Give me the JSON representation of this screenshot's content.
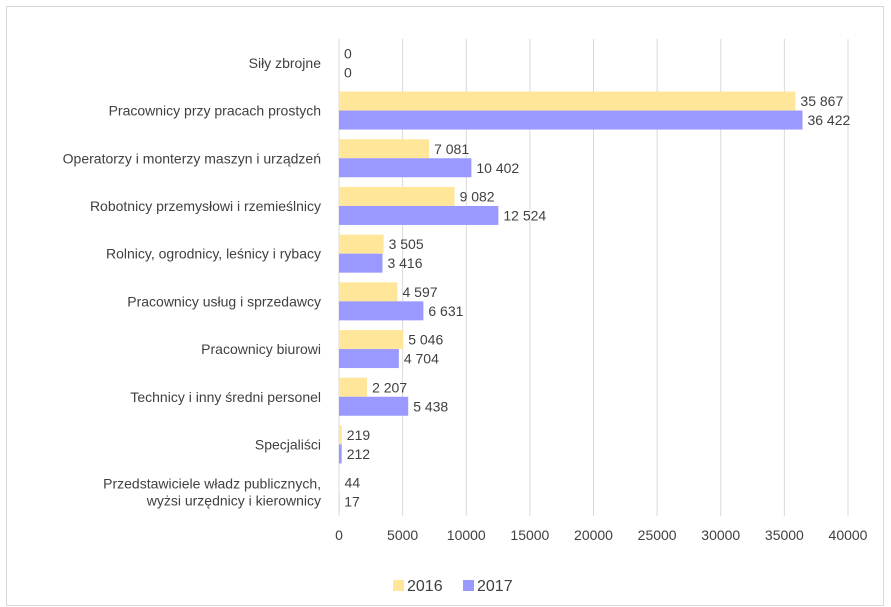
{
  "chart_data": {
    "type": "bar",
    "orientation": "horizontal",
    "categories": [
      "Siły zbrojne",
      "Pracownicy przy pracach prostych",
      "Operatorzy i monterzy maszyn i urządzeń",
      "Robotnicy przemysłowi i rzemieślnicy",
      "Rolnicy, ogrodnicy, leśnicy i rybacy",
      "Pracownicy usług i sprzedawcy",
      "Pracownicy biurowi",
      "Technicy i inny średni personel",
      "Specjaliści",
      [
        "Przedstawiciele władz publicznych,",
        "wyżsi urzędnicy i kierownicy"
      ]
    ],
    "series": [
      {
        "name": "2016",
        "color": "#FFE699",
        "values": [
          0,
          35867,
          7081,
          9082,
          3505,
          4597,
          5046,
          2207,
          219,
          44
        ],
        "labels": [
          "0",
          "35 867",
          "7 081",
          "9 082",
          "3 505",
          "4 597",
          "5 046",
          "2 207",
          "219",
          "44"
        ]
      },
      {
        "name": "2017",
        "color": "#9999FF",
        "values": [
          0,
          36422,
          10402,
          12524,
          3416,
          6631,
          4704,
          5438,
          212,
          17
        ],
        "labels": [
          "0",
          "36 422",
          "10 402",
          "12 524",
          "3 416",
          "6 631",
          "4 704",
          "5 438",
          "212",
          "17"
        ]
      }
    ],
    "xlim": [
      0,
      40000
    ],
    "xticks": [
      0,
      5000,
      10000,
      15000,
      20000,
      25000,
      30000,
      35000,
      40000
    ],
    "xtick_labels": [
      "0",
      "5000",
      "10000",
      "15000",
      "20000",
      "25000",
      "30000",
      "35000",
      "40000"
    ],
    "grid": "vertical",
    "legend": "bottom-center"
  }
}
